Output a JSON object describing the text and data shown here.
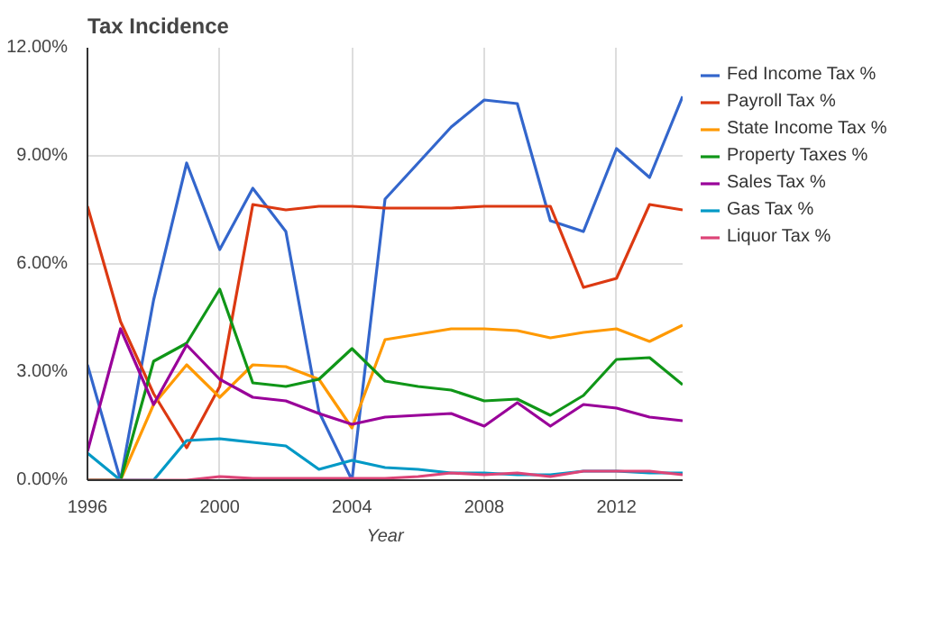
{
  "chart_data": {
    "type": "line",
    "title": "Tax Incidence",
    "xlabel": "Year",
    "x": [
      1996,
      1997,
      1998,
      1999,
      2000,
      2001,
      2002,
      2003,
      2004,
      2005,
      2006,
      2007,
      2008,
      2009,
      2010,
      2011,
      2012,
      2013,
      2014
    ],
    "series": [
      {
        "name": "Fed Income Tax %",
        "color": "#3366cc",
        "values": [
          3.2,
          0,
          5.0,
          8.8,
          6.4,
          8.1,
          6.9,
          1.9,
          0,
          7.8,
          8.8,
          9.8,
          10.55,
          10.45,
          7.2,
          6.9,
          9.2,
          8.4,
          10.65
        ]
      },
      {
        "name": "Payroll Tax %",
        "color": "#dc3912",
        "values": [
          7.6,
          4.4,
          2.4,
          0.9,
          2.6,
          7.65,
          7.5,
          7.6,
          7.6,
          7.55,
          7.55,
          7.55,
          7.6,
          7.6,
          7.6,
          5.35,
          5.6,
          7.65,
          7.5
        ]
      },
      {
        "name": "State Income Tax %",
        "color": "#ff9900",
        "values": [
          0,
          0,
          2.1,
          3.2,
          2.3,
          3.2,
          3.15,
          2.8,
          1.45,
          3.9,
          4.05,
          4.2,
          4.2,
          4.15,
          3.95,
          4.1,
          4.2,
          3.85,
          4.3
        ]
      },
      {
        "name": "Property Taxes %",
        "color": "#109618",
        "values": [
          0,
          0,
          3.3,
          3.8,
          5.3,
          2.7,
          2.6,
          2.8,
          3.65,
          2.75,
          2.6,
          2.5,
          2.2,
          2.25,
          1.8,
          2.35,
          3.35,
          3.4,
          2.65
        ]
      },
      {
        "name": "Sales Tax %",
        "color": "#990099",
        "values": [
          0.8,
          4.2,
          2.1,
          3.75,
          2.8,
          2.3,
          2.2,
          1.85,
          1.55,
          1.75,
          1.8,
          1.85,
          1.5,
          2.15,
          1.5,
          2.1,
          2.0,
          1.75,
          1.65
        ]
      },
      {
        "name": "Gas Tax %",
        "color": "#0099c6",
        "values": [
          0.75,
          0,
          0,
          1.1,
          1.15,
          1.05,
          0.95,
          0.3,
          0.55,
          0.35,
          0.3,
          0.2,
          0.2,
          0.15,
          0.15,
          0.25,
          0.25,
          0.2,
          0.2
        ]
      },
      {
        "name": "Liquor Tax %",
        "color": "#dd4477",
        "values": [
          0,
          0,
          0,
          0,
          0.1,
          0.05,
          0.05,
          0.05,
          0.05,
          0.05,
          0.1,
          0.2,
          0.15,
          0.2,
          0.1,
          0.25,
          0.25,
          0.25,
          0.15
        ]
      }
    ],
    "xlim": [
      1996,
      2014
    ],
    "ylim": [
      0,
      12
    ],
    "xticks": [
      1996,
      2000,
      2004,
      2008,
      2012
    ],
    "yticks": [
      {
        "value": 0,
        "label": "0.00%"
      },
      {
        "value": 3,
        "label": "3.00%"
      },
      {
        "value": 6,
        "label": "6.00%"
      },
      {
        "value": 9,
        "label": "9.00%"
      },
      {
        "value": 12,
        "label": "12.00%"
      }
    ],
    "grid": true,
    "legend": "right",
    "marker": "none",
    "line_style": "solid"
  }
}
